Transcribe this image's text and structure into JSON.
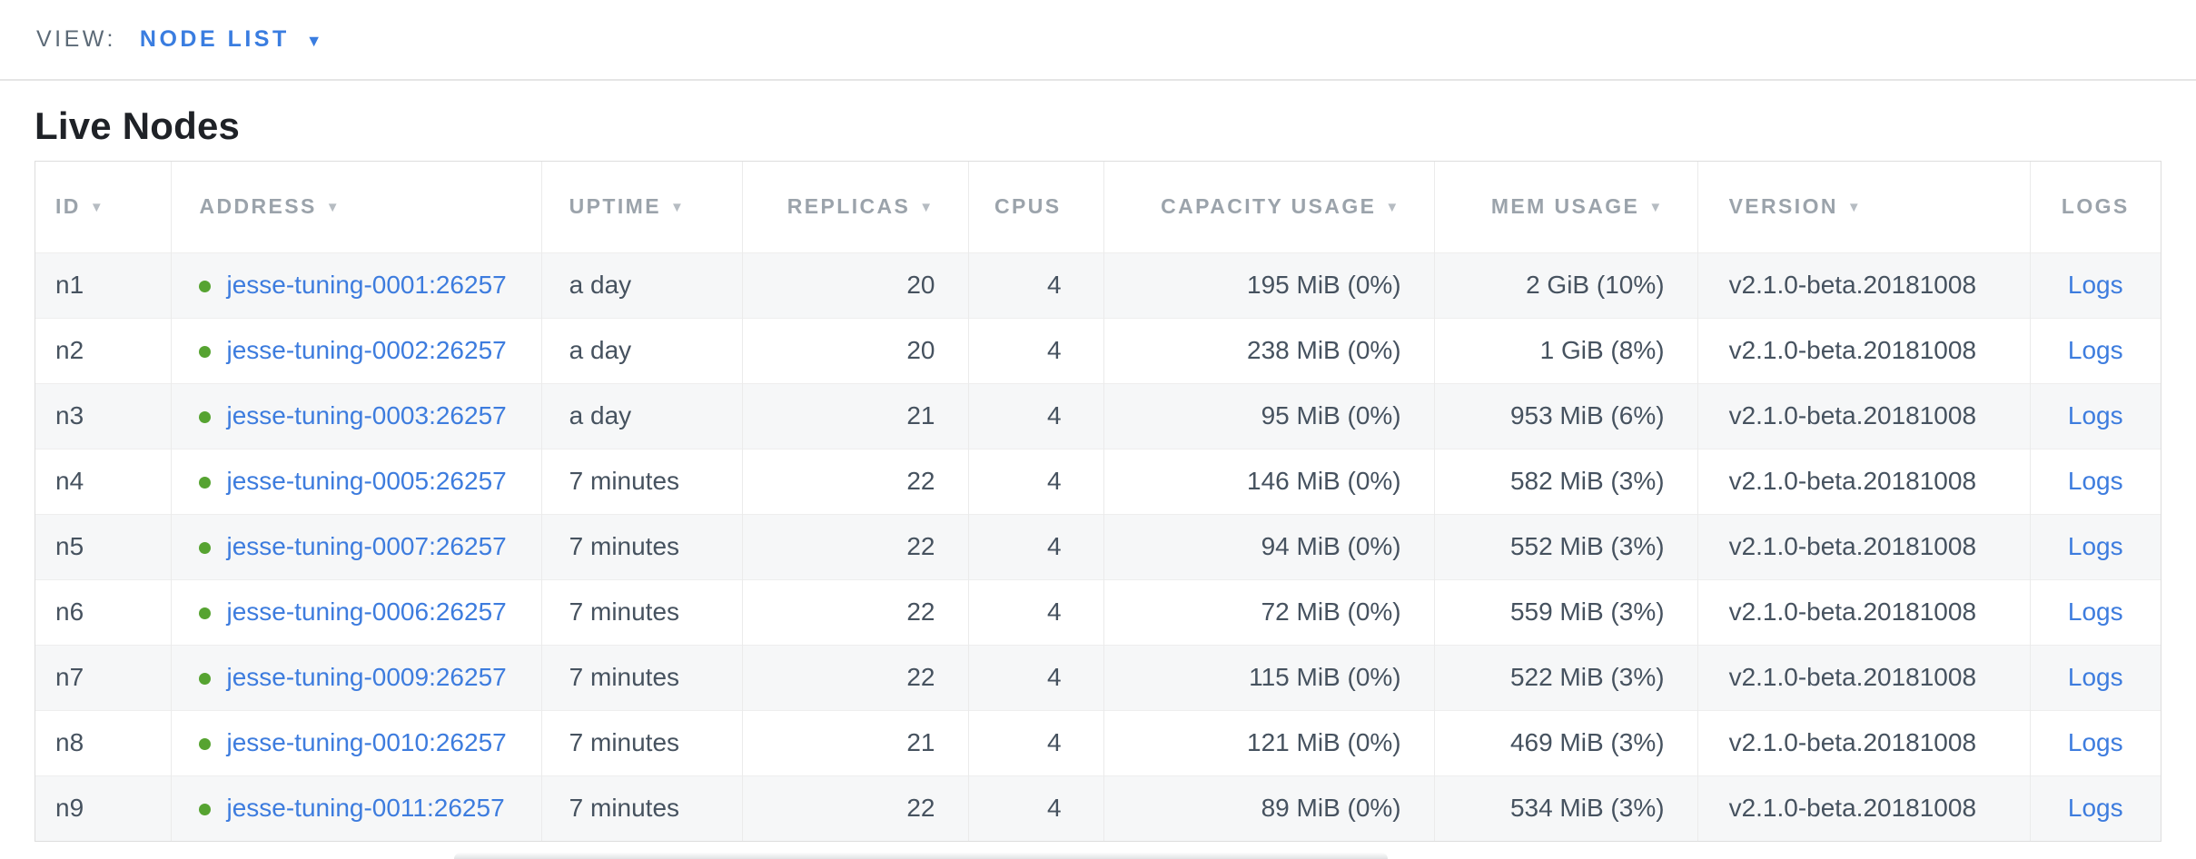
{
  "view_bar": {
    "label": "VIEW:",
    "selected_view": "NODE LIST",
    "caret": "▼"
  },
  "page": {
    "title": "Live Nodes"
  },
  "table": {
    "sort_caret": "▼",
    "columns": [
      {
        "key": "id",
        "label": "ID",
        "sortable": true,
        "align": "left-id",
        "width_pct": 6.41
      },
      {
        "key": "address",
        "label": "ADDRESS",
        "sortable": true,
        "align": "left",
        "width_pct": 17.4
      },
      {
        "key": "uptime",
        "label": "UPTIME",
        "sortable": true,
        "align": "left",
        "width_pct": 9.44
      },
      {
        "key": "replicas",
        "label": "REPLICAS",
        "sortable": true,
        "align": "right",
        "width_pct": 10.64
      },
      {
        "key": "cpus",
        "label": "CPUS",
        "sortable": false,
        "align": "right-cpus",
        "width_pct": 6.37
      },
      {
        "key": "capacity_usage",
        "label": "CAPACITY USAGE",
        "sortable": true,
        "align": "right",
        "width_pct": 15.56
      },
      {
        "key": "mem_usage",
        "label": "MEM USAGE",
        "sortable": true,
        "align": "right",
        "width_pct": 12.39
      },
      {
        "key": "version",
        "label": "VERSION",
        "sortable": true,
        "align": "left-version",
        "width_pct": 15.64
      },
      {
        "key": "logs",
        "label": "LOGS",
        "sortable": false,
        "align": "center",
        "width_pct": 6.15
      }
    ],
    "rows": [
      {
        "id": "n1",
        "address": "jesse-tuning-0001:26257",
        "uptime": "a day",
        "replicas": "20",
        "cpus": "4",
        "capacity_usage": "195 MiB (0%)",
        "mem_usage": "2 GiB (10%)",
        "version": "v2.1.0-beta.20181008",
        "logs_label": "Logs"
      },
      {
        "id": "n2",
        "address": "jesse-tuning-0002:26257",
        "uptime": "a day",
        "replicas": "20",
        "cpus": "4",
        "capacity_usage": "238 MiB (0%)",
        "mem_usage": "1 GiB (8%)",
        "version": "v2.1.0-beta.20181008",
        "logs_label": "Logs"
      },
      {
        "id": "n3",
        "address": "jesse-tuning-0003:26257",
        "uptime": "a day",
        "replicas": "21",
        "cpus": "4",
        "capacity_usage": "95 MiB (0%)",
        "mem_usage": "953 MiB (6%)",
        "version": "v2.1.0-beta.20181008",
        "logs_label": "Logs"
      },
      {
        "id": "n4",
        "address": "jesse-tuning-0005:26257",
        "uptime": "7 minutes",
        "replicas": "22",
        "cpus": "4",
        "capacity_usage": "146 MiB (0%)",
        "mem_usage": "582 MiB (3%)",
        "version": "v2.1.0-beta.20181008",
        "logs_label": "Logs"
      },
      {
        "id": "n5",
        "address": "jesse-tuning-0007:26257",
        "uptime": "7 minutes",
        "replicas": "22",
        "cpus": "4",
        "capacity_usage": "94 MiB (0%)",
        "mem_usage": "552 MiB (3%)",
        "version": "v2.1.0-beta.20181008",
        "logs_label": "Logs"
      },
      {
        "id": "n6",
        "address": "jesse-tuning-0006:26257",
        "uptime": "7 minutes",
        "replicas": "22",
        "cpus": "4",
        "capacity_usage": "72 MiB (0%)",
        "mem_usage": "559 MiB (3%)",
        "version": "v2.1.0-beta.20181008",
        "logs_label": "Logs"
      },
      {
        "id": "n7",
        "address": "jesse-tuning-0009:26257",
        "uptime": "7 minutes",
        "replicas": "22",
        "cpus": "4",
        "capacity_usage": "115 MiB (0%)",
        "mem_usage": "522 MiB (3%)",
        "version": "v2.1.0-beta.20181008",
        "logs_label": "Logs"
      },
      {
        "id": "n8",
        "address": "jesse-tuning-0010:26257",
        "uptime": "7 minutes",
        "replicas": "21",
        "cpus": "4",
        "capacity_usage": "121 MiB (0%)",
        "mem_usage": "469 MiB (3%)",
        "version": "v2.1.0-beta.20181008",
        "logs_label": "Logs"
      },
      {
        "id": "n9",
        "address": "jesse-tuning-0011:26257",
        "uptime": "7 minutes",
        "replicas": "22",
        "cpus": "4",
        "capacity_usage": "89 MiB (0%)",
        "mem_usage": "534 MiB (3%)",
        "version": "v2.1.0-beta.20181008",
        "logs_label": "Logs"
      }
    ]
  },
  "colors": {
    "accent_blue": "#3a7de0",
    "status_green": "#56a331",
    "header_gray": "#9ba3ab",
    "row_text": "#46525f",
    "zebra_row": "#f6f7f8"
  }
}
